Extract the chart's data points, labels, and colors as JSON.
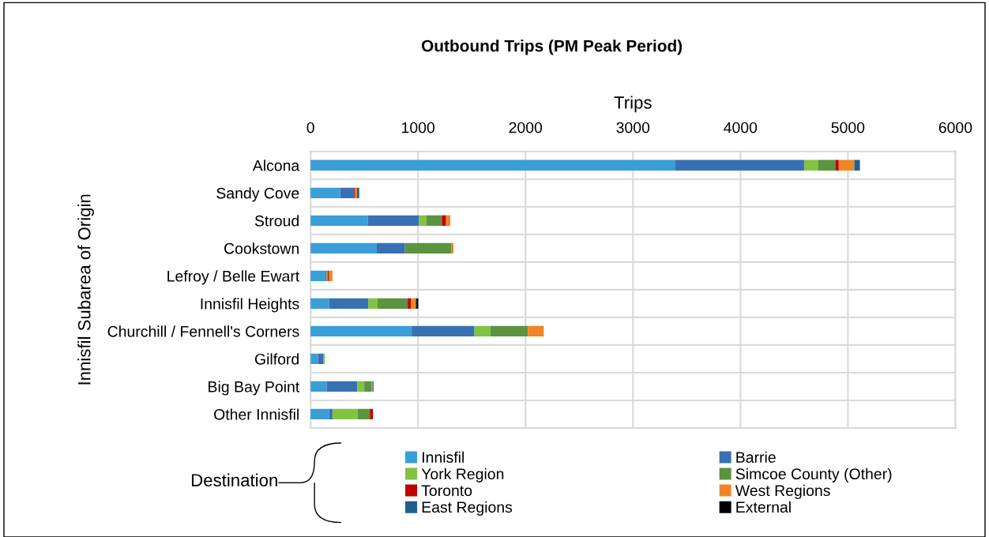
{
  "chart_data": {
    "type": "bar",
    "orientation": "horizontal",
    "stacked": true,
    "title": "Outbound Trips (PM Peak Period)",
    "xlabel": "Trips",
    "ylabel": "Innisfil Subarea of Origin",
    "legend_title": "Destination",
    "categories": [
      "Alcona",
      "Sandy Cove",
      "Stroud",
      "Cookstown",
      "Lefroy / Belle Ewart",
      "Innisfil Heights",
      "Churchill / Fennell's Corners",
      "Gilford",
      "Big Bay Point",
      "Other Innisfil"
    ],
    "xlim": [
      0,
      6000
    ],
    "xticks": [
      0,
      1000,
      2000,
      3000,
      4000,
      5000,
      6000
    ],
    "grid": true,
    "legend": "bottom",
    "series": [
      {
        "name": "Innisfil",
        "color": "#3a9ed8",
        "values": [
          3395,
          276,
          534,
          616,
          138,
          172,
          941,
          69,
          150,
          172
        ]
      },
      {
        "name": "Barrie",
        "color": "#3771b4",
        "values": [
          1199,
          130,
          476,
          263,
          10,
          365,
          584,
          52,
          284,
          32
        ]
      },
      {
        "name": "York Region",
        "color": "#82c341",
        "values": [
          131,
          0,
          66,
          0,
          7,
          86,
          147,
          12,
          66,
          234
        ]
      },
      {
        "name": "Simcoe County (Other)",
        "color": "#5b9340",
        "values": [
          158,
          0,
          146,
          429,
          5,
          281,
          350,
          0,
          67,
          114
        ]
      },
      {
        "name": "Toronto",
        "color": "#c00000",
        "values": [
          32,
          10,
          39,
          0,
          12,
          32,
          0,
          0,
          0,
          29
        ]
      },
      {
        "name": "West Regions",
        "color": "#f08526",
        "values": [
          145,
          17,
          39,
          22,
          32,
          42,
          148,
          0,
          9,
          0
        ]
      },
      {
        "name": "East Regions",
        "color": "#1f5f8b",
        "values": [
          52,
          20,
          0,
          0,
          0,
          7,
          0,
          0,
          10,
          0
        ]
      },
      {
        "name": "External",
        "color": "#000000",
        "values": [
          0,
          0,
          0,
          0,
          0,
          17,
          0,
          0,
          0,
          0
        ]
      }
    ]
  }
}
